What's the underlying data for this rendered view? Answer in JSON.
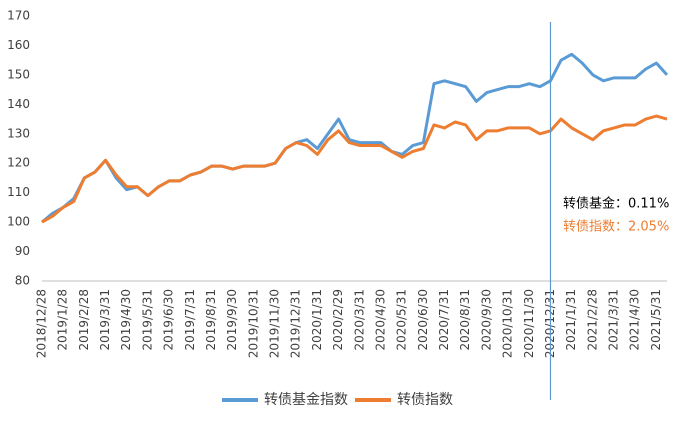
{
  "chart_data": {
    "type": "line",
    "categories": [
      "2018/12/28",
      null,
      "2019/1/28",
      null,
      "2019/2/28",
      null,
      "2019/3/31",
      null,
      "2019/4/30",
      null,
      "2019/5/31",
      null,
      "2019/6/30",
      null,
      "2019/7/31",
      null,
      "2019/8/31",
      null,
      "2019/9/30",
      null,
      "2019/10/31",
      null,
      "2019/11/30",
      null,
      "2019/12/31",
      null,
      "2020/1/31",
      null,
      "2020/2/29",
      null,
      "2020/3/31",
      null,
      "2020/4/30",
      null,
      "2020/5/31",
      null,
      "2020/6/30",
      null,
      "2020/7/31",
      null,
      "2020/8/31",
      null,
      "2020/9/30",
      null,
      "2020/10/31",
      null,
      "2020/11/30",
      null,
      "2020/12/31",
      null,
      "2021/1/31",
      null,
      "2021/2/28",
      null,
      "2021/3/31",
      null,
      "2021/4/30",
      null,
      "2021/5/31",
      null
    ],
    "series": [
      {
        "name": "转债基金指数",
        "color": "#5b9bd5",
        "values": [
          100,
          103,
          105,
          108,
          115,
          117,
          121,
          115,
          111,
          112,
          109,
          112,
          114,
          114,
          116,
          117,
          119,
          119,
          118,
          119,
          119,
          119,
          120,
          125,
          127,
          128,
          125,
          130,
          135,
          128,
          127,
          127,
          127,
          124,
          123,
          126,
          127,
          147,
          148,
          147,
          146,
          141,
          144,
          145,
          146,
          146,
          147,
          146,
          148,
          155,
          157,
          154,
          150,
          148,
          149,
          149,
          149,
          152,
          154,
          150
        ]
      },
      {
        "name": "转债指数",
        "color": "#ed7d31",
        "values": [
          100,
          102,
          105,
          107,
          115,
          117,
          121,
          116,
          112,
          112,
          109,
          112,
          114,
          114,
          116,
          117,
          119,
          119,
          118,
          119,
          119,
          119,
          120,
          125,
          127,
          126,
          123,
          128,
          131,
          127,
          126,
          126,
          126,
          124,
          122,
          124,
          125,
          133,
          132,
          134,
          133,
          128,
          131,
          131,
          132,
          132,
          132,
          130,
          131,
          135,
          132,
          130,
          128,
          131,
          132,
          133,
          133,
          135,
          136,
          135
        ]
      }
    ],
    "ylim": [
      80,
      170
    ],
    "yticks": [
      80,
      90,
      100,
      110,
      120,
      130,
      140,
      150,
      160,
      170
    ],
    "grid": false,
    "legend": "bottom",
    "vline": "2020/12/31",
    "vline_color": "#5b9bd5",
    "annotations": [
      {
        "text": "转债基金：0.11%",
        "color": "#000000"
      },
      {
        "text": "转债指数：2.05%",
        "color": "#ed7d31"
      }
    ]
  }
}
